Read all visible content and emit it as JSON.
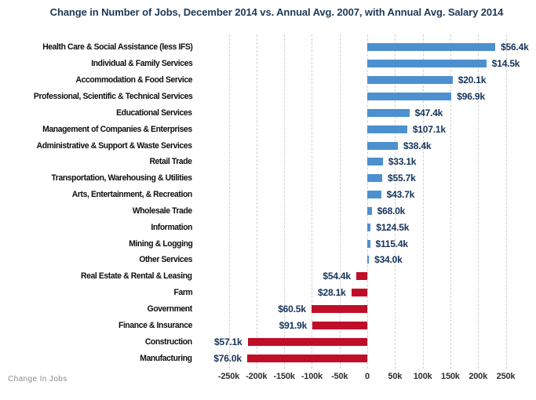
{
  "chart_data": {
    "type": "bar",
    "orientation": "horizontal",
    "title": "Change in Number of Jobs, December 2014 vs. Annual Avg. 2007, with Annual Avg. Salary 2014",
    "xlabel": "Change In Jobs",
    "grid": "vertical-dashed",
    "legend_position": "none",
    "colors": {
      "positive": "#4d90d0",
      "negative": "#c10e28",
      "title": "#1b3a57",
      "value_label": "#14325a"
    },
    "axis": {
      "xlim_thousands": [
        -250,
        250
      ],
      "tick_values": [
        -250,
        -200,
        -150,
        -100,
        -50,
        0,
        50,
        100,
        150,
        200,
        250
      ],
      "tick_labels": [
        "-250k",
        "-200k",
        "-150k",
        "-100k",
        "-50k",
        "0",
        "50k",
        "100k",
        "150k",
        "200k",
        "250k"
      ]
    },
    "rows": [
      {
        "label": "Health Care & Social Assistance (less IFS)",
        "jobs_change_k": 231,
        "salary_label": "$56.4k"
      },
      {
        "label": "Individual & Family Services",
        "jobs_change_k": 215,
        "salary_label": "$14.5k"
      },
      {
        "label": "Accommodation & Food Service",
        "jobs_change_k": 154,
        "salary_label": "$20.1k"
      },
      {
        "label": "Professional, Scientific & Technical Services",
        "jobs_change_k": 152,
        "salary_label": "$96.9k"
      },
      {
        "label": "Educational Services",
        "jobs_change_k": 76,
        "salary_label": "$47.4k"
      },
      {
        "label": "Management of Companies & Enterprises",
        "jobs_change_k": 72,
        "salary_label": "$107.1k"
      },
      {
        "label": "Administrative & Support & Waste Services",
        "jobs_change_k": 55,
        "salary_label": "$38.4k"
      },
      {
        "label": "Retail Trade",
        "jobs_change_k": 28,
        "salary_label": "$33.1k"
      },
      {
        "label": "Transportation, Warehousing & Utilities",
        "jobs_change_k": 27,
        "salary_label": "$55.7k"
      },
      {
        "label": "Arts, Entertainment, & Recreation",
        "jobs_change_k": 25,
        "salary_label": "$43.7k"
      },
      {
        "label": "Wholesale Trade",
        "jobs_change_k": 8,
        "salary_label": "$68.0k"
      },
      {
        "label": "Information",
        "jobs_change_k": 6,
        "salary_label": "$124.5k"
      },
      {
        "label": "Mining & Logging",
        "jobs_change_k": 5,
        "salary_label": "$115.4k"
      },
      {
        "label": "Other Services",
        "jobs_change_k": 3,
        "salary_label": "$34.0k"
      },
      {
        "label": "Real Estate & Rental & Leasing",
        "jobs_change_k": -20,
        "salary_label": "$54.4k"
      },
      {
        "label": "Farm",
        "jobs_change_k": -29,
        "salary_label": "$28.1k"
      },
      {
        "label": "Government",
        "jobs_change_k": -101,
        "salary_label": "$60.5k"
      },
      {
        "label": "Finance & Insurance",
        "jobs_change_k": -99,
        "salary_label": "$91.9k"
      },
      {
        "label": "Construction",
        "jobs_change_k": -216,
        "salary_label": "$57.1k"
      },
      {
        "label": "Manufacturing",
        "jobs_change_k": -217,
        "salary_label": "$76.0k"
      }
    ]
  },
  "footer": {
    "xaxis_label": "Change In Jobs"
  }
}
